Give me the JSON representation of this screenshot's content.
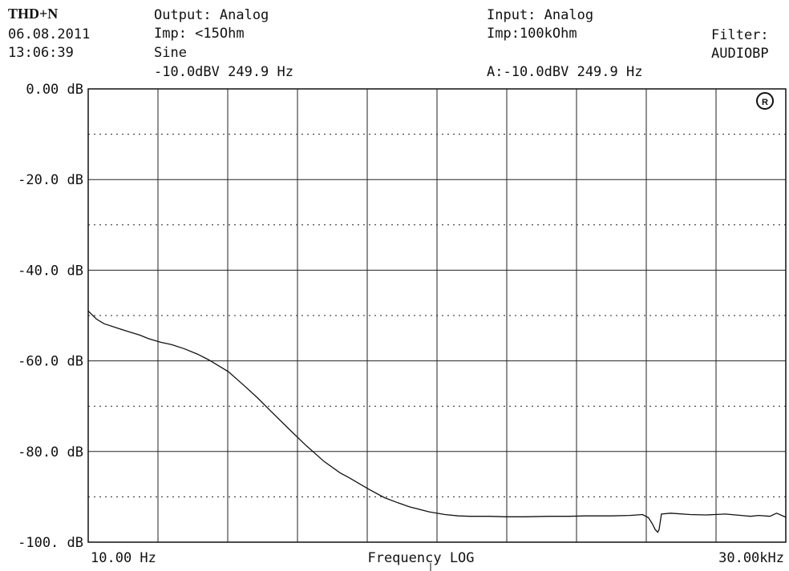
{
  "header": {
    "mode": "THD+N",
    "date": "06.08.2011",
    "time": "13:06:39",
    "output": "Output: Analog",
    "output_imp": "Imp: <15Ohm",
    "waveform": "Sine",
    "gen_level": "-10.0dBV 249.9 Hz",
    "input": "Input: Analog",
    "input_imp": "Imp:100kOhm",
    "input_level": "A:-10.0dBV 249.9 Hz",
    "filter_label": "Filter:",
    "filter_value": "AUDIOBP"
  },
  "chart_data": {
    "type": "line",
    "title": "",
    "xlabel": "Frequency LOG",
    "x_scale": "log",
    "xlim": [
      10,
      30000
    ],
    "x_tick_labels": [
      "10.00 Hz",
      "30.00kHz"
    ],
    "ylabel": "",
    "ylim": [
      -100,
      0
    ],
    "y_tick_labels": [
      "0.00 dB",
      "-20.0 dB",
      "-40.0 dB",
      "-60.0 dB",
      "-80.0 dB",
      "-100. dB"
    ],
    "grid": true,
    "series": [
      {
        "x": [
          10,
          11,
          12,
          14,
          16,
          18,
          20,
          23,
          26,
          30,
          35,
          40,
          50,
          60,
          70,
          80,
          100,
          120,
          150,
          180,
          200,
          250,
          300,
          350,
          400,
          500,
          600,
          700,
          800,
          1000,
          1200,
          1500,
          2000,
          2500,
          3000,
          4000,
          5000,
          5800,
          6200,
          6500,
          6700,
          6900,
          7000,
          7200,
          8000,
          10000,
          12000,
          15000,
          18000,
          20000,
          22000,
          25000,
          27000,
          30000
        ],
        "y": [
          -49,
          -50.8,
          -51.8,
          -52.8,
          -53.6,
          -54.3,
          -55.1,
          -55.9,
          -56.4,
          -57.3,
          -58.5,
          -59.8,
          -62.4,
          -65.5,
          -68.2,
          -70.8,
          -75,
          -78.4,
          -82.2,
          -84.7,
          -85.8,
          -88.3,
          -90.2,
          -91.3,
          -92.2,
          -93.3,
          -93.9,
          -94.2,
          -94.3,
          -94.3,
          -94.4,
          -94.4,
          -94.3,
          -94.3,
          -94.2,
          -94.2,
          -94.1,
          -93.9,
          -94.6,
          -96,
          -97.2,
          -97.8,
          -97.3,
          -93.8,
          -93.6,
          -93.9,
          -94,
          -93.8,
          -94.1,
          -94.3,
          -94.1,
          -94.3,
          -93.6,
          -94.5
        ]
      }
    ],
    "logo_icon": "rohde-schwarz-logo-icon"
  }
}
